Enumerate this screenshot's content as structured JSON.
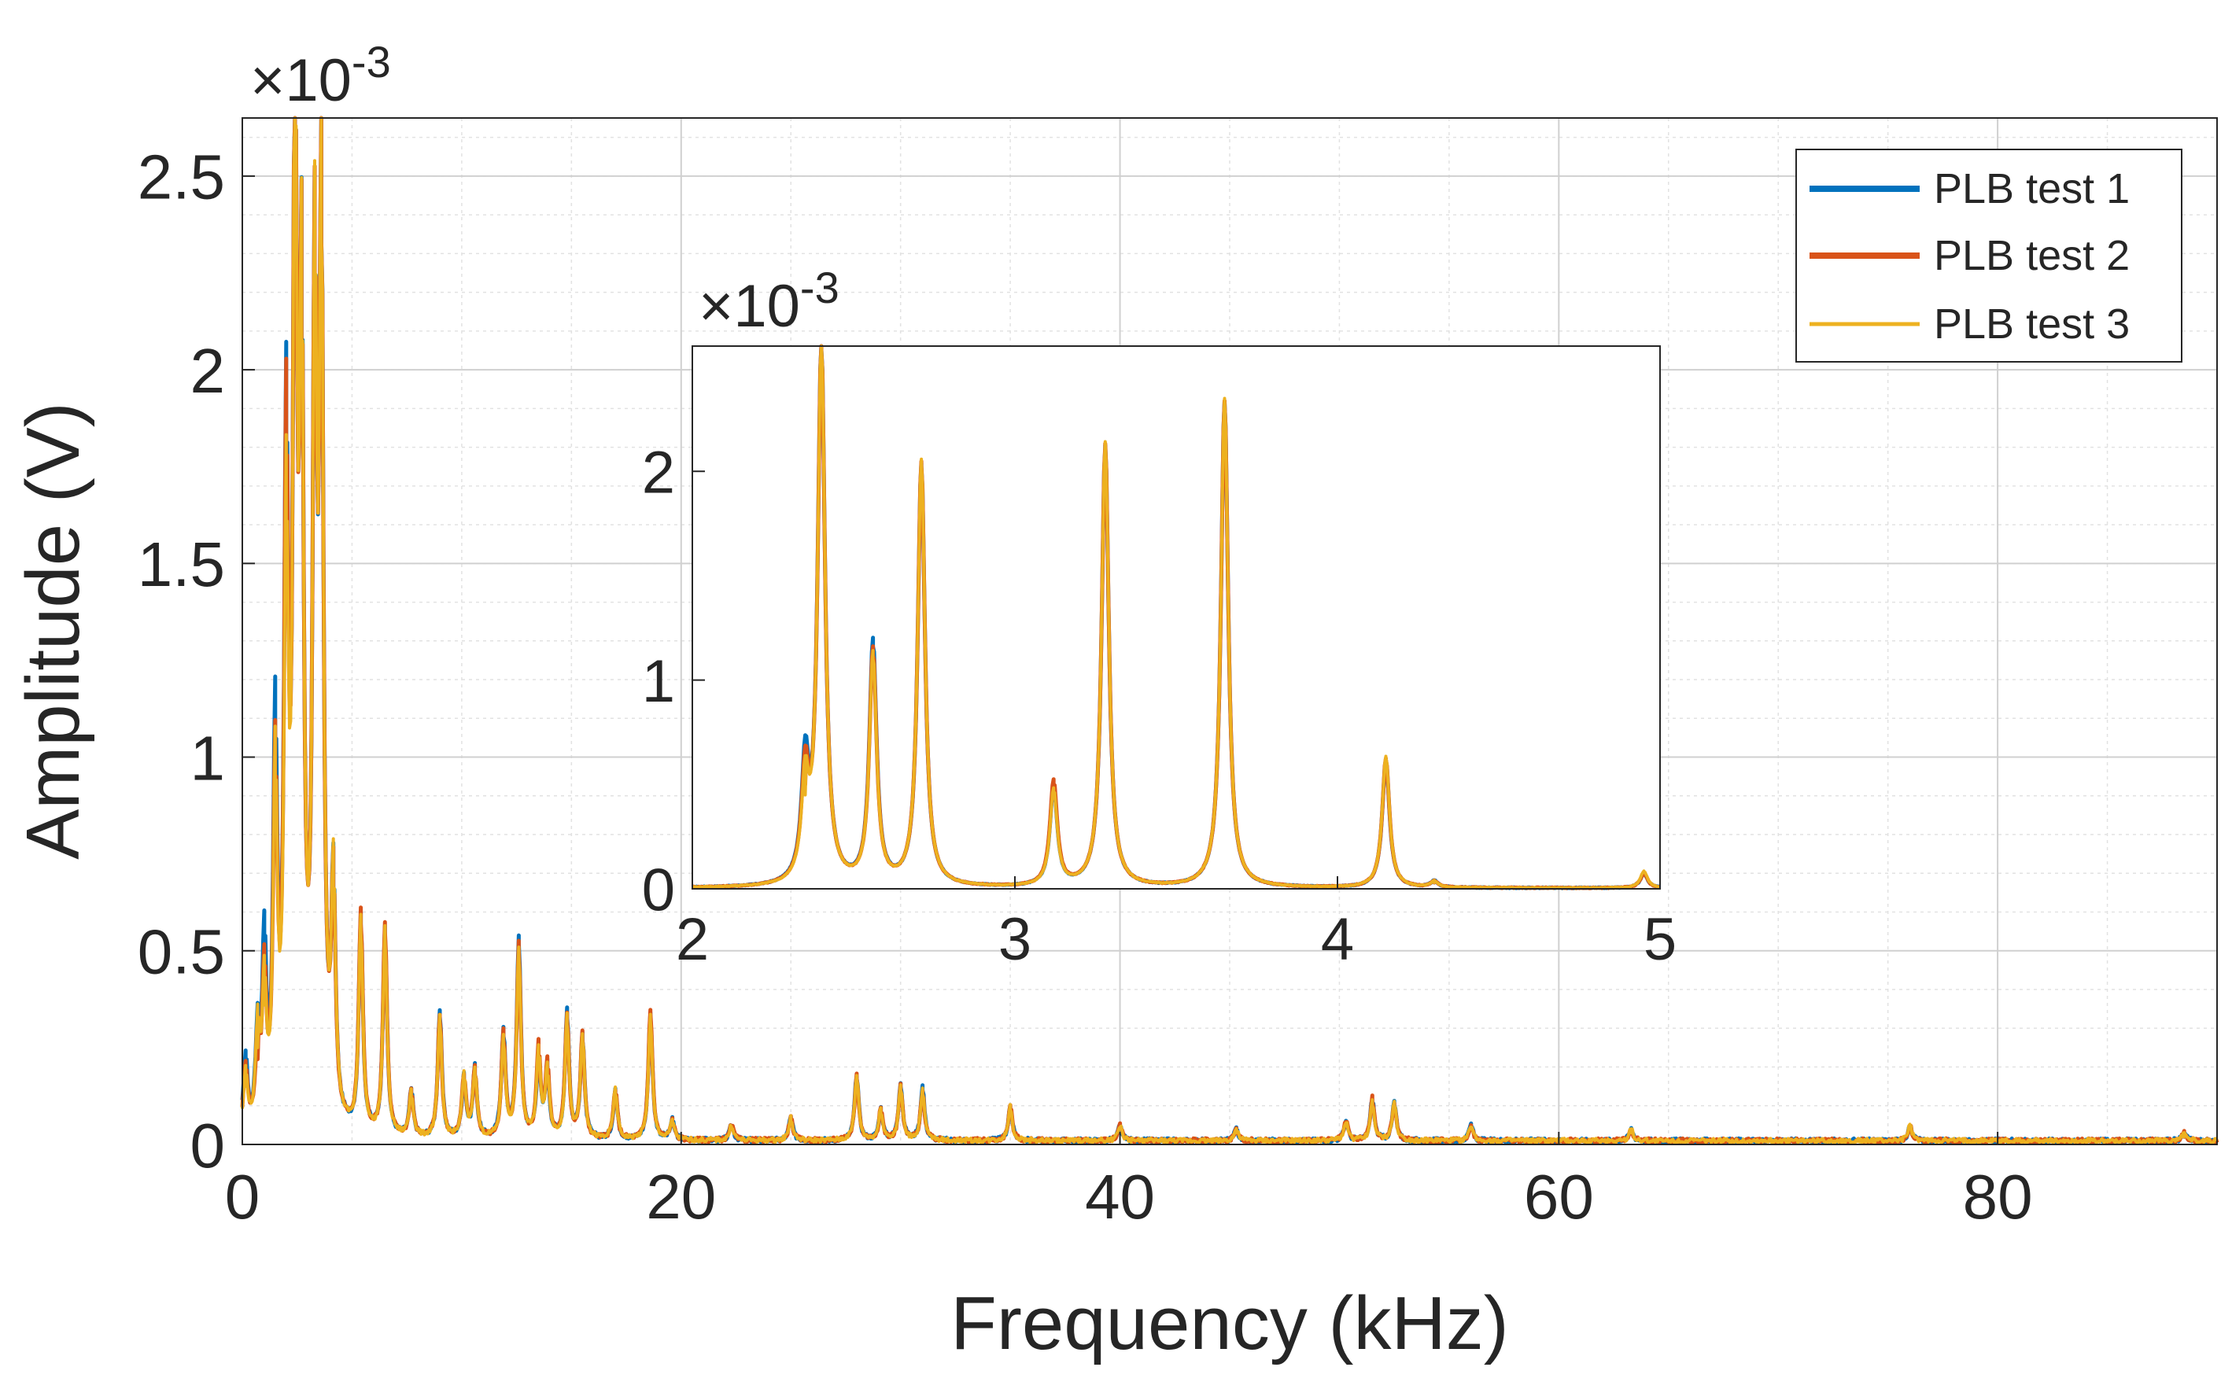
{
  "chart_data": [
    {
      "id": "main",
      "type": "line",
      "xlabel": "Frequency (kHz)",
      "ylabel": "Amplitude (V)",
      "xlim": [
        0,
        90
      ],
      "ylim": [
        0,
        0.00265
      ],
      "y_multiplier": "×10",
      "y_exponent": "-3",
      "x_ticks": [
        0,
        20,
        40,
        60,
        80
      ],
      "x_tick_labels": [
        "0",
        "20",
        "40",
        "60",
        "80"
      ],
      "y_ticks": [
        0,
        0.0005,
        0.001,
        0.0015,
        0.002,
        0.0025
      ],
      "y_tick_labels": [
        "0",
        "0.5",
        "1",
        "1.5",
        "2",
        "2.5"
      ],
      "grid": true,
      "minor_grid": true,
      "legend_position": "top-right",
      "series": [
        {
          "name": "PLB test 1",
          "color": "#0072BD",
          "peaks": [
            [
              0.15,
              0.00019
            ],
            [
              0.7,
              0.00024
            ],
            [
              1.0,
              0.00047
            ],
            [
              1.5,
              0.00103
            ],
            [
              2.0,
              0.00176
            ],
            [
              2.4,
              0.00258
            ],
            [
              2.7,
              0.00203
            ],
            [
              3.3,
              0.00212
            ],
            [
              3.6,
              0.00233
            ],
            [
              4.15,
              0.00062
            ],
            [
              5.4,
              0.00056
            ],
            [
              6.5,
              0.00054
            ],
            [
              7.7,
              0.00012
            ],
            [
              9.0,
              0.00033
            ],
            [
              10.1,
              0.00016
            ],
            [
              10.6,
              0.00018
            ],
            [
              11.9,
              0.00028
            ],
            [
              12.6,
              0.00052
            ],
            [
              13.5,
              0.00021
            ],
            [
              13.9,
              0.00018
            ],
            [
              14.8,
              0.00033
            ],
            [
              15.5,
              0.00027
            ],
            [
              17.0,
              0.00013
            ],
            [
              18.6,
              0.00033
            ],
            [
              19.6,
              5e-05
            ],
            [
              22.3,
              4e-05
            ],
            [
              25.0,
              6e-05
            ],
            [
              28.0,
              0.00017
            ],
            [
              29.1,
              8e-05
            ],
            [
              30.0,
              0.00015
            ],
            [
              31.0,
              0.00014
            ],
            [
              35.0,
              9e-05
            ],
            [
              40.0,
              4e-05
            ],
            [
              45.3,
              3e-05
            ],
            [
              50.3,
              5e-05
            ],
            [
              51.5,
              0.00011
            ],
            [
              52.5,
              0.0001
            ],
            [
              56.0,
              4e-05
            ],
            [
              63.3,
              3e-05
            ],
            [
              76.0,
              4e-05
            ],
            [
              88.5,
              2e-05
            ]
          ]
        },
        {
          "name": "PLB test 2",
          "color": "#D95319",
          "peaks": [
            [
              0.15,
              0.00017
            ],
            [
              0.7,
              0.00022
            ],
            [
              1.0,
              0.00039
            ],
            [
              1.5,
              0.00092
            ],
            [
              2.0,
              0.00172
            ],
            [
              2.4,
              0.00258
            ],
            [
              2.7,
              0.00203
            ],
            [
              3.3,
              0.00212
            ],
            [
              3.6,
              0.00233
            ],
            [
              4.15,
              0.00061
            ],
            [
              5.4,
              0.00057
            ],
            [
              6.5,
              0.00055
            ],
            [
              7.7,
              0.00012
            ],
            [
              9.0,
              0.00032
            ],
            [
              10.1,
              0.00016
            ],
            [
              10.6,
              0.00018
            ],
            [
              11.9,
              0.00027
            ],
            [
              12.6,
              0.0005
            ],
            [
              13.5,
              0.00023
            ],
            [
              13.9,
              0.00019
            ],
            [
              14.8,
              0.00032
            ],
            [
              15.5,
              0.00027
            ],
            [
              17.0,
              0.00013
            ],
            [
              18.6,
              0.00034
            ],
            [
              19.6,
              5e-05
            ],
            [
              22.3,
              4e-05
            ],
            [
              25.0,
              6e-05
            ],
            [
              28.0,
              0.00017
            ],
            [
              29.1,
              8e-05
            ],
            [
              30.0,
              0.00014
            ],
            [
              31.0,
              0.00013
            ],
            [
              35.0,
              9e-05
            ],
            [
              40.0,
              4e-05
            ],
            [
              45.3,
              3e-05
            ],
            [
              50.3,
              5e-05
            ],
            [
              51.5,
              0.00011
            ],
            [
              52.5,
              0.0001
            ],
            [
              56.0,
              4e-05
            ],
            [
              63.3,
              3e-05
            ],
            [
              76.0,
              4e-05
            ],
            [
              88.5,
              2e-05
            ]
          ]
        },
        {
          "name": "PLB test 3",
          "color": "#EDB120",
          "peaks": [
            [
              0.15,
              0.00015
            ],
            [
              0.7,
              0.00025
            ],
            [
              1.0,
              0.00036
            ],
            [
              1.5,
              0.00091
            ],
            [
              2.0,
              0.00152
            ],
            [
              2.4,
              0.0026
            ],
            [
              2.7,
              0.00204
            ],
            [
              3.3,
              0.00213
            ],
            [
              3.6,
              0.00234
            ],
            [
              4.15,
              0.00063
            ],
            [
              5.4,
              0.00055
            ],
            [
              6.5,
              0.00053
            ],
            [
              7.7,
              0.00012
            ],
            [
              9.0,
              0.00031
            ],
            [
              10.1,
              0.00016
            ],
            [
              10.6,
              0.00018
            ],
            [
              11.9,
              0.00026
            ],
            [
              12.6,
              0.00049
            ],
            [
              13.5,
              0.00022
            ],
            [
              13.9,
              0.00018
            ],
            [
              14.8,
              0.00031
            ],
            [
              15.5,
              0.00027
            ],
            [
              17.0,
              0.00013
            ],
            [
              18.6,
              0.00032
            ],
            [
              19.6,
              5e-05
            ],
            [
              22.3,
              4e-05
            ],
            [
              25.0,
              6e-05
            ],
            [
              28.0,
              0.00017
            ],
            [
              29.1,
              8e-05
            ],
            [
              30.0,
              0.00014
            ],
            [
              31.0,
              0.00013
            ],
            [
              35.0,
              9e-05
            ],
            [
              40.0,
              4e-05
            ],
            [
              45.3,
              3e-05
            ],
            [
              50.3,
              5e-05
            ],
            [
              51.5,
              0.0001
            ],
            [
              52.5,
              0.0001
            ],
            [
              56.0,
              4e-05
            ],
            [
              63.3,
              3e-05
            ],
            [
              76.0,
              4e-05
            ],
            [
              88.5,
              2e-05
            ]
          ]
        }
      ]
    },
    {
      "id": "inset",
      "type": "line",
      "xlim": [
        2,
        5
      ],
      "ylim": [
        0,
        0.0026
      ],
      "y_multiplier": "×10",
      "y_exponent": "-3",
      "x_ticks": [
        2,
        3,
        4,
        5
      ],
      "x_tick_labels": [
        "2",
        "3",
        "4",
        "5"
      ],
      "y_ticks": [
        0,
        0.001,
        0.002
      ],
      "y_tick_labels": [
        "0",
        "1",
        "2"
      ],
      "grid": false,
      "series": [
        {
          "name": "PLB test 1",
          "color": "#0072BD",
          "peaks": [
            [
              2.35,
              0.00055
            ],
            [
              2.4,
              0.00258
            ],
            [
              2.56,
              0.00116
            ],
            [
              2.71,
              0.00202
            ],
            [
              3.12,
              0.00048
            ],
            [
              3.28,
              0.00211
            ],
            [
              3.65,
              0.00233
            ],
            [
              4.15,
              0.00061
            ],
            [
              4.3,
              3e-05
            ],
            [
              4.95,
              7e-05
            ]
          ]
        },
        {
          "name": "PLB test 2",
          "color": "#D95319",
          "peaks": [
            [
              2.35,
              0.0005
            ],
            [
              2.4,
              0.00258
            ],
            [
              2.56,
              0.00112
            ],
            [
              2.71,
              0.00203
            ],
            [
              3.12,
              0.0005
            ],
            [
              3.28,
              0.00212
            ],
            [
              3.65,
              0.00233
            ],
            [
              4.15,
              0.00062
            ],
            [
              4.3,
              3e-05
            ],
            [
              4.95,
              7e-05
            ]
          ]
        },
        {
          "name": "PLB test 3",
          "color": "#EDB120",
          "peaks": [
            [
              2.35,
              0.00045
            ],
            [
              2.4,
              0.0026
            ],
            [
              2.56,
              0.0011
            ],
            [
              2.71,
              0.00204
            ],
            [
              3.12,
              0.00046
            ],
            [
              3.28,
              0.00213
            ],
            [
              3.65,
              0.00234
            ],
            [
              4.15,
              0.00063
            ],
            [
              4.3,
              3e-05
            ],
            [
              4.95,
              8e-05
            ]
          ]
        }
      ]
    }
  ]
}
